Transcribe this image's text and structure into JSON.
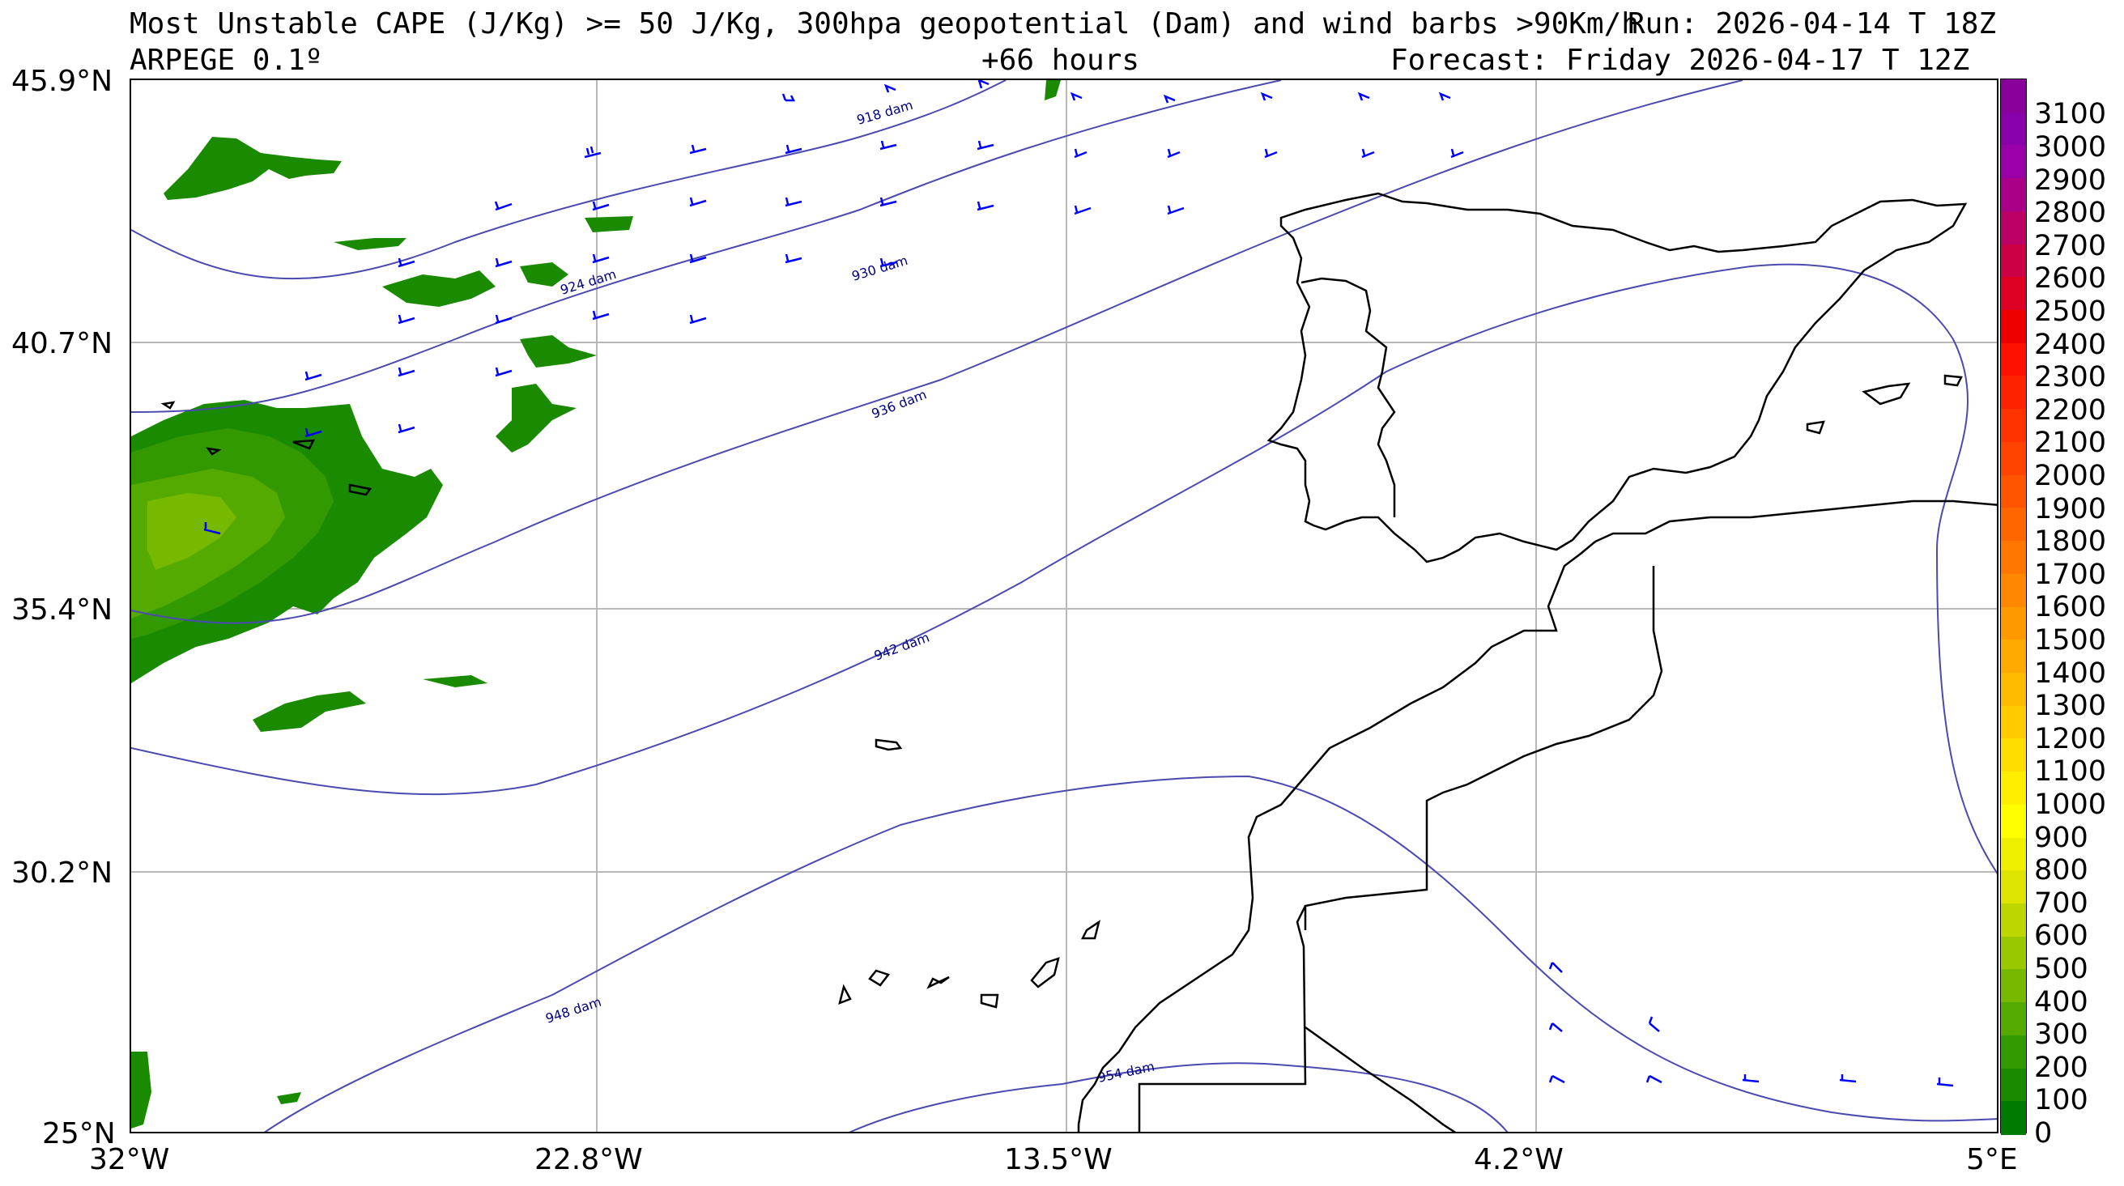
{
  "title": {
    "line1_left": "Most Unstable CAPE (J/Kg) >= 50 J/Kg, 300hpa geopotential (Dam) and wind barbs >90Km/h",
    "line1_right": "Run: 2026-04-14 T 18Z",
    "line2_left": "ARPEGE 0.1º",
    "line2_center": "+66 hours",
    "line2_right": "Forecast: Friday 2026-04-17 T 12Z"
  },
  "axes": {
    "lat_ticks": [
      "45.9°N",
      "40.7°N",
      "35.4°N",
      "30.2°N",
      "25°N"
    ],
    "lon_ticks": [
      "32°W",
      "22.8°W",
      "13.5°W",
      "4.2°W",
      "5°E"
    ],
    "lat_range": [
      25,
      45.9
    ],
    "lon_range": [
      -32,
      5
    ]
  },
  "contours": {
    "labels": [
      "918 dam",
      "924 dam",
      "930 dam",
      "936 dam",
      "942 dam",
      "948 dam",
      "954 dam"
    ],
    "color": "#4a4ab0"
  },
  "colorbar": {
    "ticks": [
      "3100",
      "3000",
      "2900",
      "2800",
      "2700",
      "2600",
      "2500",
      "2400",
      "2300",
      "2200",
      "2100",
      "2000",
      "1900",
      "1800",
      "1700",
      "1600",
      "1500",
      "1400",
      "1300",
      "1200",
      "1100",
      "1000",
      "900",
      "800",
      "700",
      "600",
      "500",
      "400",
      "300",
      "200",
      "100",
      "0"
    ],
    "colors": [
      "#007a00",
      "#1a8a00",
      "#339900",
      "#55aa00",
      "#77b800",
      "#99c800",
      "#bbd600",
      "#dde400",
      "#eef000",
      "#ffff00",
      "#ffee00",
      "#ffdd00",
      "#ffcc00",
      "#ffbb00",
      "#ffaa00",
      "#ff9900",
      "#ff8800",
      "#ff7700",
      "#ff6600",
      "#ff5500",
      "#ff4400",
      "#ff3300",
      "#ff2200",
      "#ff1100",
      "#ee0000",
      "#dd0022",
      "#cc0044",
      "#bb0066",
      "#aa0088",
      "#9900aa",
      "#8800aa",
      "#880099"
    ]
  },
  "colors": {
    "cape_green": "#1a8a00",
    "barb": "#0000ff",
    "coast": "#000000"
  }
}
